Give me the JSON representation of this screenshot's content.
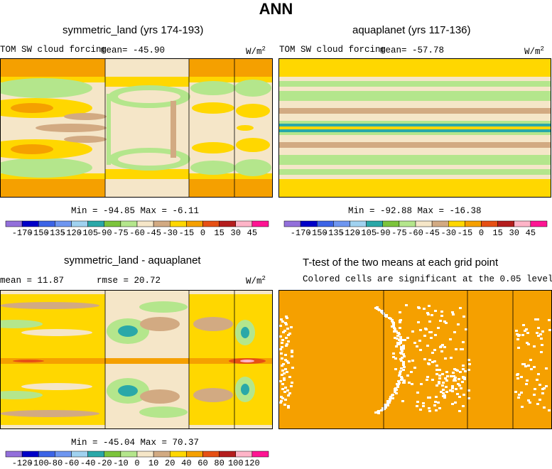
{
  "figure": {
    "title": "ANN"
  },
  "panels": {
    "p1": {
      "title": "symmetric_land (yrs 174-193)",
      "var": "TOM SW cloud forcing",
      "mean": "mean= -45.90",
      "units": "W/m",
      "units_sup": "2",
      "minmax": "Min = -94.85  Max =   -6.11"
    },
    "p2": {
      "title": "aquaplanet (yrs 117-136)",
      "var": "TOM SW cloud forcing",
      "mean": "mean= -57.78",
      "units": "W/m",
      "units_sup": "2",
      "minmax": "Min = -92.88  Max = -16.38"
    },
    "p3": {
      "title": "symmetric_land - aquaplanet",
      "mean": "mean =  11.87",
      "rmse": "rmse =  20.72",
      "units": "W/m",
      "units_sup": "2",
      "minmax": "Min = -45.04  Max =  70.37"
    },
    "p4": {
      "title": "T-test of the two means at each grid point",
      "subtitle": "Colored cells are significant at the 0.05 level"
    }
  },
  "colorbars": {
    "cb1": {
      "labels": [
        "-170",
        "-150",
        "-135",
        "-120",
        "-105",
        "-90",
        "-75",
        "-60",
        "-45",
        "-30",
        "-15",
        "0",
        "15",
        "30",
        "45"
      ]
    },
    "cb2": {
      "labels": [
        "-170",
        "-150",
        "-135",
        "-120",
        "-105",
        "-90",
        "-75",
        "-60",
        "-45",
        "-30",
        "-15",
        "0",
        "15",
        "30",
        "45"
      ]
    },
    "cb3": {
      "labels": [
        "-120",
        "-100",
        "-80",
        "-60",
        "-40",
        "-20",
        "-10",
        "0",
        "10",
        "20",
        "40",
        "60",
        "80",
        "100",
        "120"
      ]
    }
  },
  "chart_data": [
    {
      "type": "heatmap",
      "title": "symmetric_land (yrs 174-193)",
      "field": "TOM SW cloud forcing",
      "units": "W/m2",
      "mean": -45.9,
      "min": -94.85,
      "max": -6.11,
      "contour_levels": [
        -170,
        -150,
        -135,
        -120,
        -105,
        -90,
        -75,
        -60,
        -45,
        -30,
        -15,
        0,
        15,
        30,
        45
      ],
      "zonal_structure": {
        "lat_fraction_top_to_bottom": [
          0.0,
          0.17,
          0.24,
          0.3,
          0.36,
          0.42,
          0.47,
          0.5,
          0.53,
          0.58,
          0.64,
          0.7,
          0.76,
          0.83,
          1.0
        ],
        "value_ocean": [
          -22,
          -38,
          -52,
          -68,
          -50,
          -40,
          -35,
          -30,
          -35,
          -40,
          -50,
          -68,
          -52,
          -38,
          -22
        ],
        "value_land": [
          -22,
          -45,
          -68,
          -58,
          -48,
          -40,
          -35,
          -30,
          -35,
          -40,
          -48,
          -58,
          -68,
          -45,
          -22
        ]
      }
    },
    {
      "type": "heatmap",
      "title": "aquaplanet (yrs 117-136)",
      "field": "TOM SW cloud forcing",
      "units": "W/m2",
      "mean": -57.78,
      "min": -92.88,
      "max": -16.38,
      "contour_levels": [
        -170,
        -150,
        -135,
        -120,
        -105,
        -90,
        -75,
        -60,
        -45,
        -30,
        -15,
        0,
        15,
        30,
        45
      ]
    },
    {
      "type": "heatmap",
      "title": "symmetric_land - aquaplanet",
      "units": "W/m2",
      "mean": 11.87,
      "rmse": 20.72,
      "min": -45.04,
      "max": 70.37,
      "contour_levels": [
        -120,
        -100,
        -80,
        -60,
        -40,
        -20,
        -10,
        0,
        10,
        20,
        40,
        60,
        80,
        100,
        120
      ]
    },
    {
      "type": "heatmap",
      "title": "T-test of the two means at each grid point",
      "subtitle": "Colored cells are significant at the 0.05 level",
      "significance_level": 0.05,
      "significant_color": "#f5a000",
      "insignificant_color": "#ffffff"
    }
  ],
  "colors": {
    "cbar1": [
      "#9370db",
      "#0000c8",
      "#3c64e6",
      "#6e96f0",
      "#a0d2f0",
      "#2aa8a8",
      "#7cc43c",
      "#b4e68c",
      "#f5e6c8",
      "#d2aa82",
      "#ffd700",
      "#f5a000",
      "#e65014",
      "#b41e1e",
      "#ffb4c8",
      "#ff1493"
    ],
    "cbar3": [
      "#9370db",
      "#0000c8",
      "#3c64e6",
      "#6e96f0",
      "#a0d2f0",
      "#2aa8a8",
      "#7cc43c",
      "#b4e68c",
      "#f5e6c8",
      "#d2aa82",
      "#ffd700",
      "#f5a000",
      "#e65014",
      "#b41e1e",
      "#ffb4c8",
      "#ff1493"
    ]
  }
}
